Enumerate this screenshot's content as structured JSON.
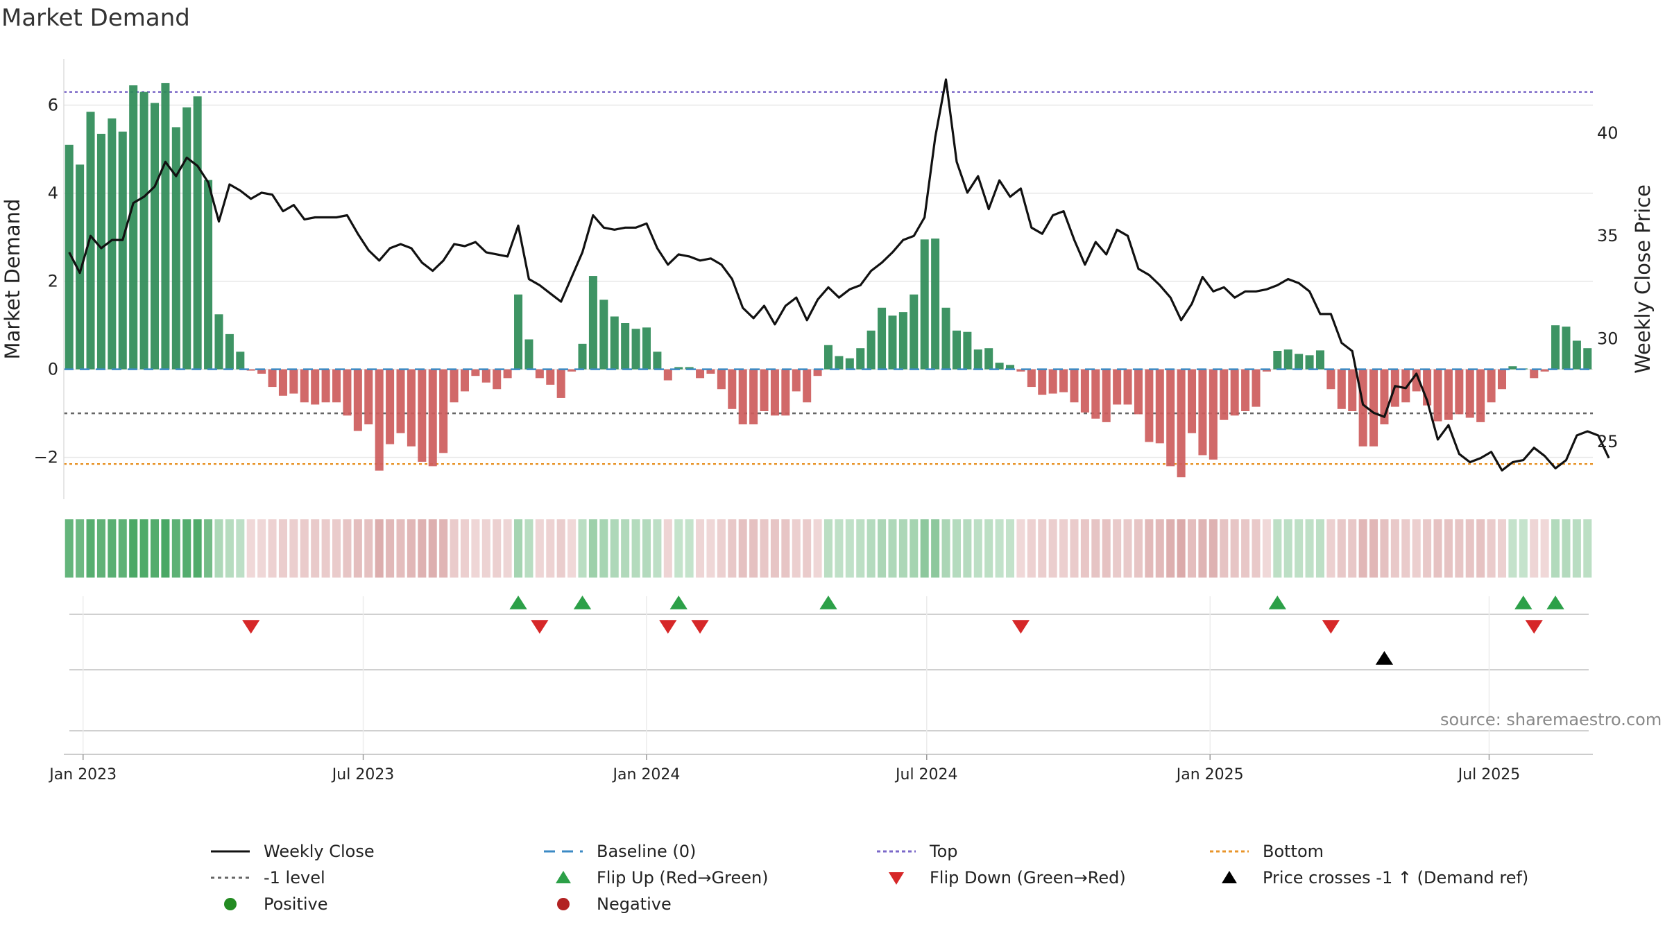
{
  "chart_data": {
    "type": "bar",
    "title": "Market Demand",
    "ylabel_left": "Market Demand",
    "ylabel_right": "Weekly Close Price",
    "ylim_left": [
      -2.95,
      7.05
    ],
    "ylim_right": [
      22.2,
      43.6
    ],
    "yticks_left": [
      -2,
      0,
      2,
      4,
      6
    ],
    "yticks_left_labels": [
      "−2",
      "0",
      "2",
      "4",
      "6"
    ],
    "yticks_right": [
      25,
      30,
      35,
      40
    ],
    "yticks_right_labels": [
      "25",
      "30",
      "35",
      "40"
    ],
    "x_date_ticks": [
      "Jan 2023",
      "Jul 2023",
      "Jan 2024",
      "Jul 2024",
      "Jan 2025",
      "Jul 2025"
    ],
    "x_tick_week_index": [
      1.8,
      28,
      54.5,
      80.7,
      107.2,
      133.3
    ],
    "reference_lines": {
      "top": 6.3,
      "minus_one": -1.0,
      "bottom": -2.15
    },
    "demand": [
      5.1,
      4.65,
      5.85,
      5.35,
      5.7,
      5.4,
      6.45,
      6.3,
      6.05,
      6.5,
      5.5,
      5.95,
      6.2,
      4.3,
      1.25,
      0.8,
      0.4,
      -0.03,
      -0.1,
      -0.4,
      -0.6,
      -0.55,
      -0.75,
      -0.8,
      -0.75,
      -0.75,
      -1.05,
      -1.4,
      -1.25,
      -2.3,
      -1.7,
      -1.45,
      -1.75,
      -2.1,
      -2.2,
      -1.9,
      -0.75,
      -0.5,
      -0.15,
      -0.3,
      -0.45,
      -0.2,
      1.7,
      0.68,
      -0.2,
      -0.35,
      -0.65,
      -0.05,
      0.58,
      2.12,
      1.58,
      1.2,
      1.05,
      0.92,
      0.95,
      0.4,
      -0.25,
      0.05,
      0.05,
      -0.2,
      -0.1,
      -0.45,
      -0.9,
      -1.25,
      -1.25,
      -0.95,
      -1.05,
      -1.05,
      -0.5,
      -0.75,
      -0.15,
      0.55,
      0.3,
      0.25,
      0.48,
      0.88,
      1.4,
      1.22,
      1.3,
      1.7,
      2.95,
      2.97,
      1.4,
      0.88,
      0.85,
      0.45,
      0.48,
      0.15,
      0.1,
      -0.05,
      -0.4,
      -0.58,
      -0.55,
      -0.52,
      -0.75,
      -0.98,
      -1.12,
      -1.2,
      -0.8,
      -0.8,
      -1.02,
      -1.65,
      -1.68,
      -2.2,
      -2.45,
      -1.45,
      -1.95,
      -2.05,
      -1.15,
      -1.05,
      -0.95,
      -0.85,
      -0.05,
      0.42,
      0.45,
      0.35,
      0.32,
      0.43,
      -0.45,
      -0.9,
      -0.95,
      -1.75,
      -1.75,
      -1.25,
      -0.85,
      -0.75,
      -0.5,
      -0.82,
      -1.18,
      -1.15,
      -1.02,
      -1.1,
      -1.2,
      -0.75,
      -0.45,
      0.07,
      0.02,
      -0.2,
      -0.05,
      1.0,
      0.97,
      0.65,
      0.48
    ],
    "close": [
      34.2,
      33.2,
      35.0,
      34.4,
      34.8,
      34.8,
      36.6,
      36.9,
      37.4,
      38.6,
      37.9,
      38.8,
      38.4,
      37.6,
      35.7,
      37.5,
      37.2,
      36.8,
      37.1,
      37.0,
      36.2,
      36.5,
      35.8,
      35.9,
      35.9,
      35.9,
      36.0,
      35.1,
      34.3,
      33.8,
      34.4,
      34.6,
      34.4,
      33.7,
      33.3,
      33.8,
      34.6,
      34.5,
      34.7,
      34.2,
      34.1,
      34.0,
      35.5,
      32.9,
      32.6,
      32.2,
      31.8,
      33.0,
      34.2,
      36.0,
      35.4,
      35.3,
      35.4,
      35.4,
      35.6,
      34.4,
      33.6,
      34.1,
      34.0,
      33.8,
      33.9,
      33.6,
      32.9,
      31.5,
      31.0,
      31.6,
      30.7,
      31.6,
      32.0,
      30.9,
      31.9,
      32.5,
      32.0,
      32.4,
      32.6,
      33.3,
      33.7,
      34.2,
      34.8,
      35.0,
      35.9,
      39.8,
      42.6,
      38.6,
      37.1,
      37.9,
      36.3,
      37.7,
      36.9,
      37.3,
      35.4,
      35.1,
      36.0,
      36.2,
      34.8,
      33.6,
      34.7,
      34.1,
      35.3,
      35.0,
      33.4,
      33.1,
      32.6,
      32.0,
      30.9,
      31.7,
      33.0,
      32.3,
      32.5,
      32.0,
      32.3,
      32.3,
      32.4,
      32.6,
      32.9,
      32.7,
      32.3,
      31.2,
      31.2,
      29.8,
      29.4,
      26.8,
      26.4,
      26.2,
      27.7,
      27.6,
      28.3,
      27.0,
      25.1,
      25.8,
      24.4,
      24.0,
      24.2,
      24.5,
      23.6,
      24.0,
      24.1,
      24.7,
      24.3,
      23.7,
      24.1,
      25.3,
      25.5,
      25.3,
      24.2
    ],
    "strip_colors": {
      "pos_strong": "#4aa865",
      "pos_light": "#c5e3cc",
      "neg_strong": "#dbaaaa",
      "neg_light": "#f0d9d9"
    },
    "flip_up_weeks": [
      42,
      48,
      57,
      71,
      113,
      136,
      139
    ],
    "flip_down_weeks": [
      17,
      44,
      56,
      59,
      89,
      118,
      137
    ],
    "price_cross_weeks": [
      123
    ],
    "legend": [
      {
        "key": "close",
        "label": "Weekly Close"
      },
      {
        "key": "baseline",
        "label": "Baseline (0)"
      },
      {
        "key": "top",
        "label": "Top"
      },
      {
        "key": "bottom",
        "label": "Bottom"
      },
      {
        "key": "minus1",
        "label": "-1 level"
      },
      {
        "key": "flipup",
        "label": "Flip Up (Red→Green)"
      },
      {
        "key": "flipdown",
        "label": "Flip Down (Green→Red)"
      },
      {
        "key": "cross",
        "label": "Price crosses -1 ↑ (Demand ref)"
      },
      {
        "key": "positive",
        "label": "Positive"
      },
      {
        "key": "negative",
        "label": "Negative"
      }
    ],
    "colors": {
      "bar_positive": "#2e8b57",
      "bar_negative": "#cd5c5c",
      "close_line": "#111111",
      "baseline": "#3b8ac4",
      "top": "#7b68c8",
      "bottom": "#e8952b",
      "minus1": "#666666",
      "flip_up": "#2ca048",
      "flip_down": "#d62728",
      "cross": "#000000",
      "positive_dot": "#238b22",
      "negative_dot": "#b22222"
    },
    "source_text": "source: sharemaestro.com"
  }
}
